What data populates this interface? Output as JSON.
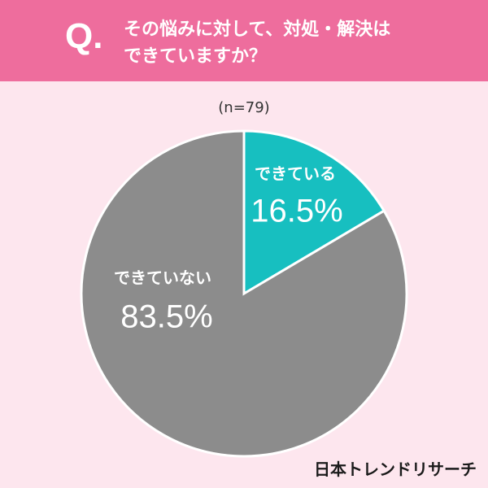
{
  "header": {
    "prefix": "Q."
  },
  "chart_data": {
    "type": "pie",
    "title": "その悩みに対して、対処・解決はできていますか？",
    "subtitle": "(n=79)",
    "categories": [
      "できている",
      "できていない"
    ],
    "values": [
      16.5,
      83.5
    ],
    "value_labels": [
      "16.5%",
      "83.5%"
    ],
    "colors": [
      "#17bfc0",
      "#8c8c8c"
    ]
  },
  "footer": {
    "brand": "日本トレンドリサーチ"
  }
}
